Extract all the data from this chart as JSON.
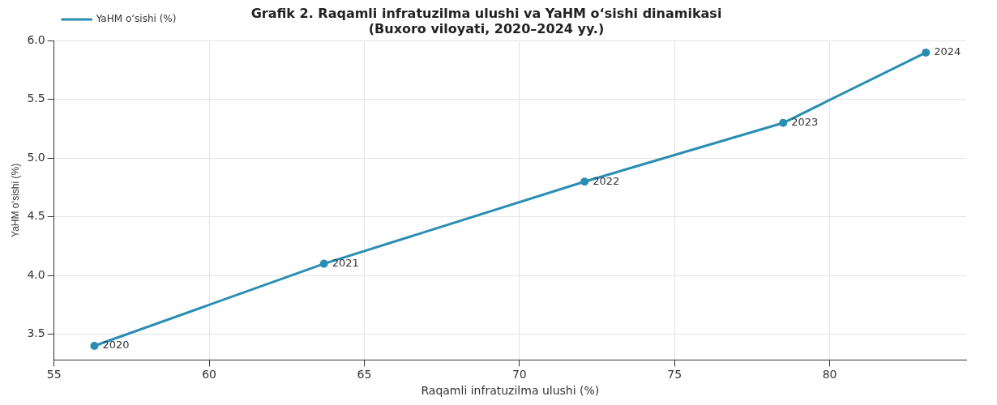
{
  "chart_data": {
    "type": "line",
    "title": "Grafik 2. Raqamli infratuzilma ulushi va YaHM o‘sishi dinamikasi\n(Buxoro viloyati, 2020–2024 yy.)",
    "xlabel": "Raqamli infratuzilma ulushi (%)",
    "ylabel": "YaHM o‘sishi (%)",
    "x": [
      56.3,
      63.7,
      72.1,
      78.5,
      83.1
    ],
    "series": [
      {
        "name": "YaHM o‘sishi (%)",
        "color": "#2a8db3",
        "values": [
          3.4,
          4.1,
          4.8,
          5.3,
          5.9
        ]
      }
    ],
    "xlim": [
      55,
      84.4
    ],
    "xticks": [
      55,
      60,
      65,
      70,
      75,
      80
    ],
    "ylim": [
      3.28,
      6.0
    ],
    "yticks": [
      3.5,
      {
        "value": 4,
        "label": "4.0"
      },
      4.5,
      {
        "value": 5,
        "label": "5.0"
      },
      5.5,
      {
        "value": 6,
        "label": "6.0"
      }
    ],
    "grid": true,
    "legend": "top left",
    "marker": "circle",
    "line_style": "solid",
    "annotations": [
      {
        "text": "2020",
        "x": 56.3,
        "y": 3.4
      },
      {
        "text": "2021",
        "x": 63.7,
        "y": 4.1
      },
      {
        "text": "2022",
        "x": 72.1,
        "y": 4.8
      },
      {
        "text": "2023",
        "x": 78.5,
        "y": 5.3
      },
      {
        "text": "2024",
        "x": 83.1,
        "y": 5.9
      }
    ]
  }
}
